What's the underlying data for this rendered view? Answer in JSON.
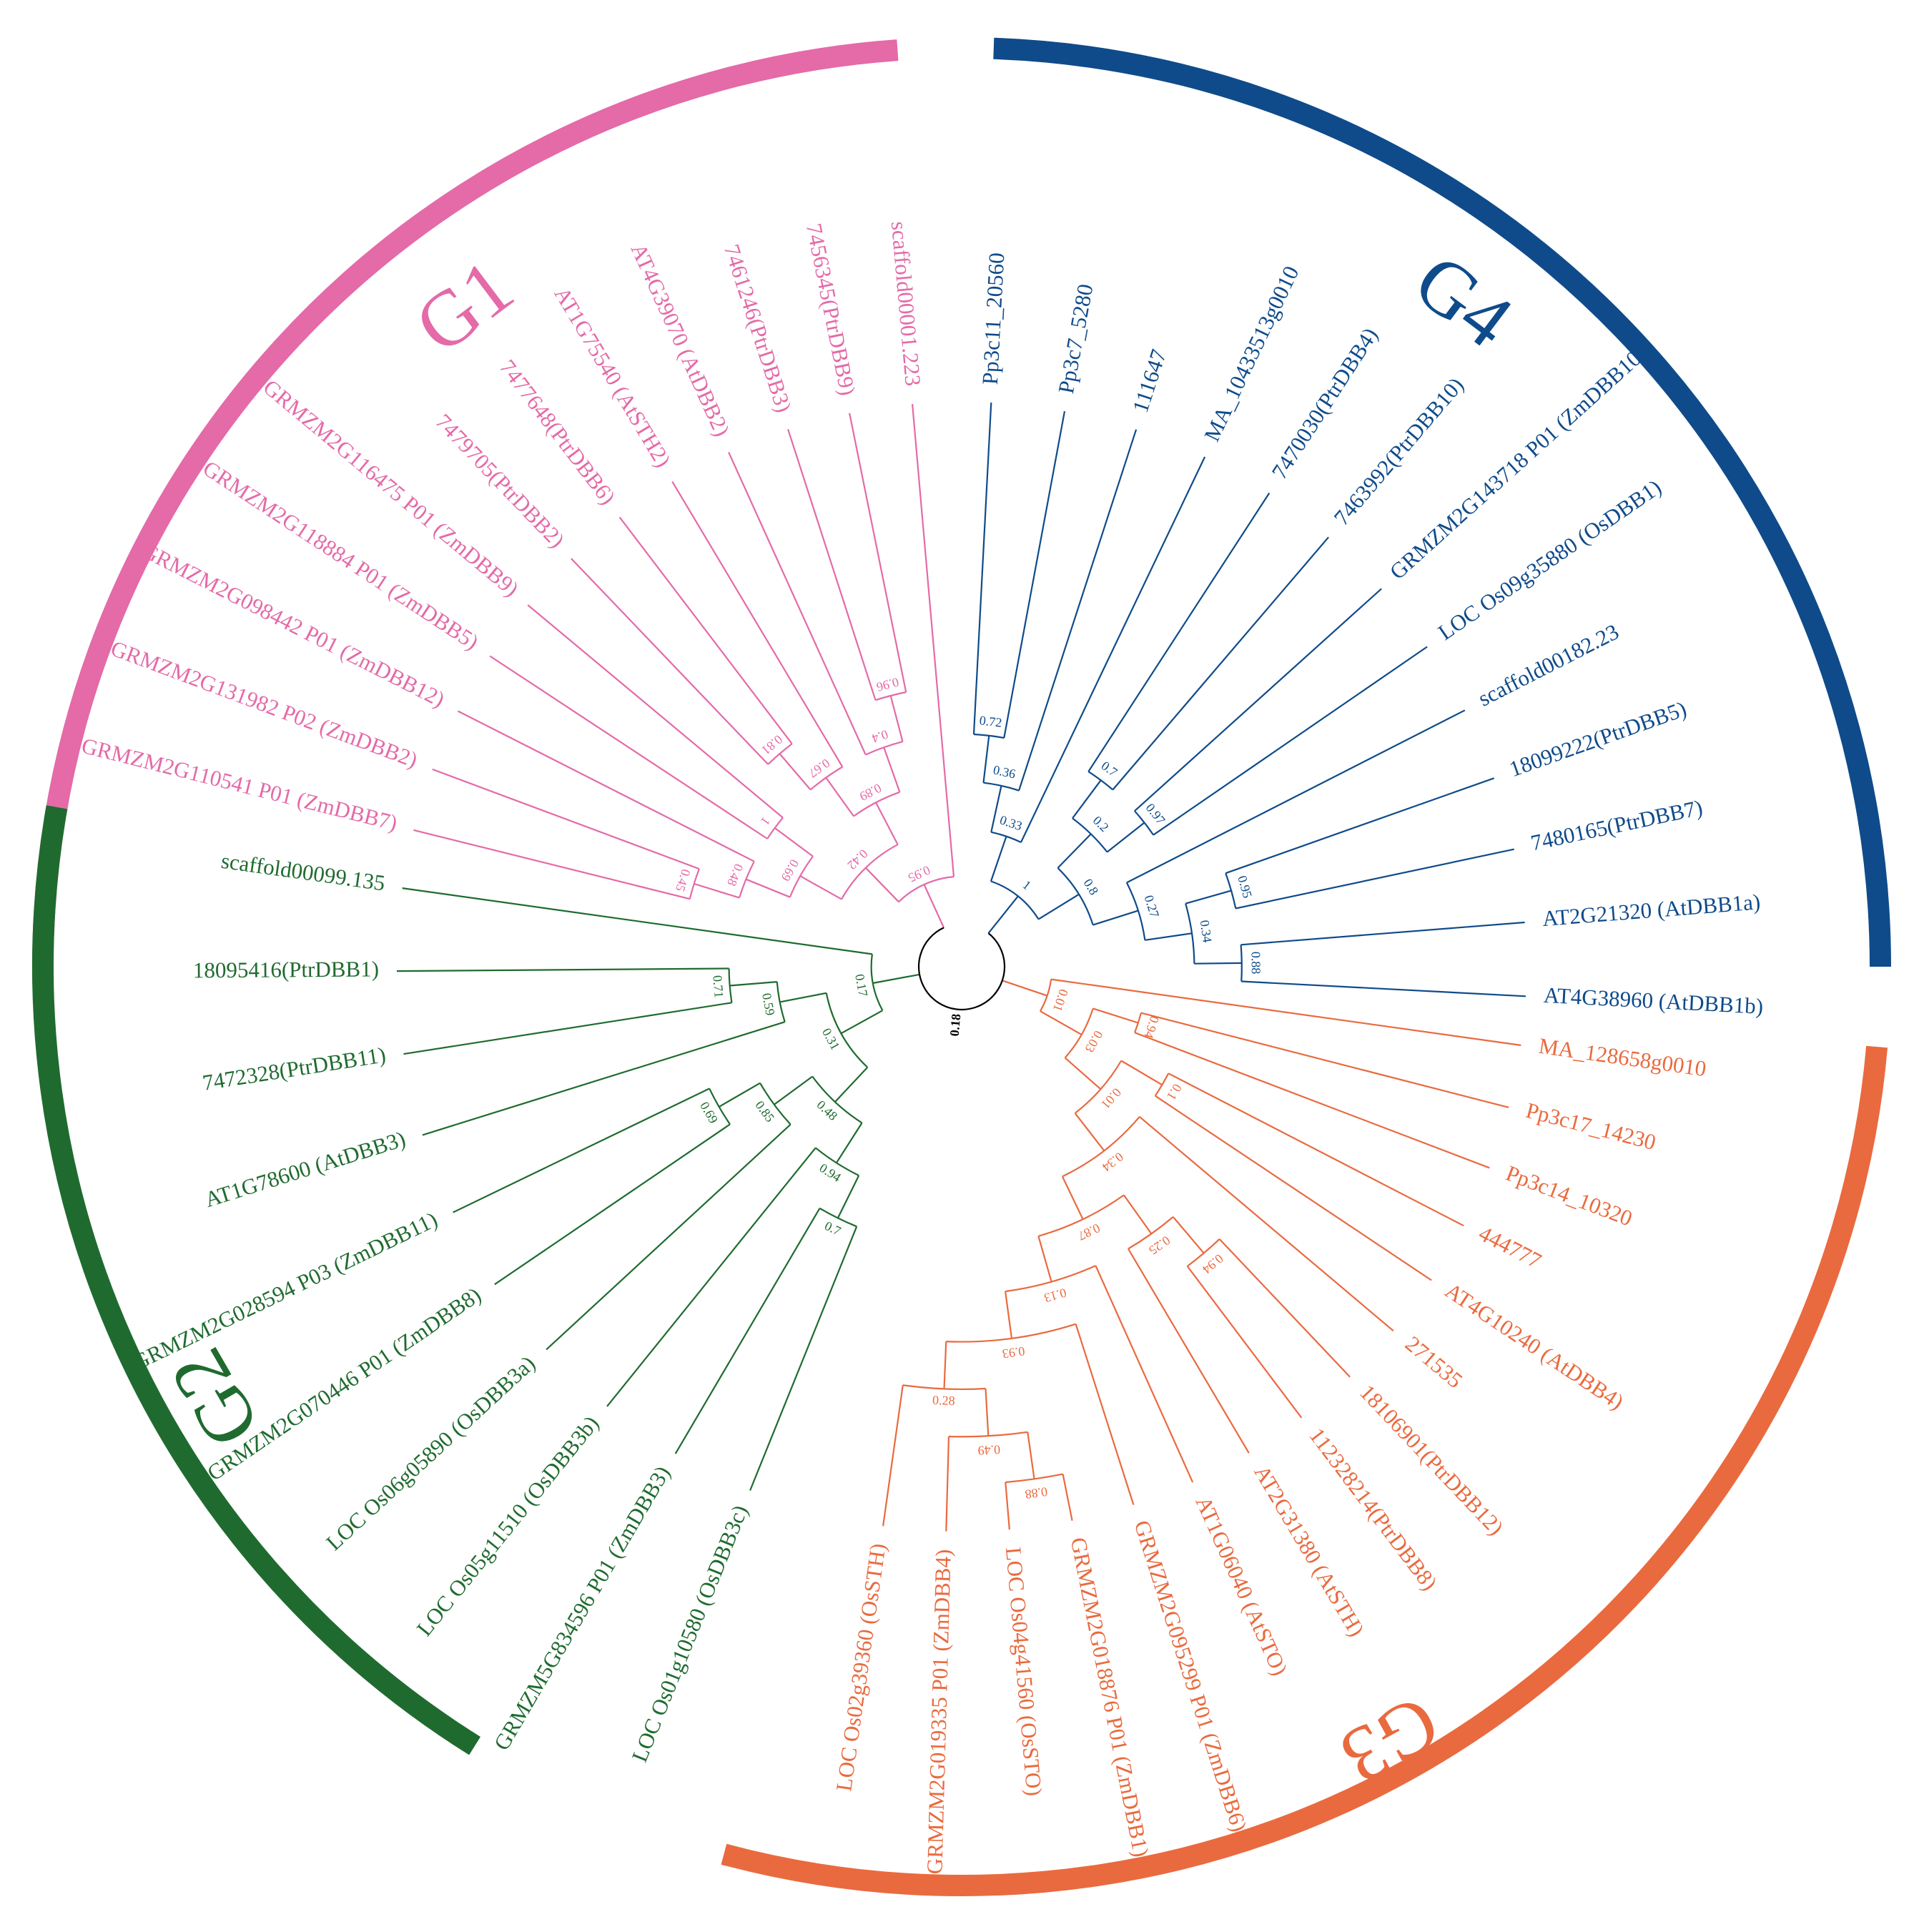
{
  "colors": {
    "G1": "#e46aa8",
    "G2": "#1f6b2f",
    "G3": "#e96a3f",
    "G4": "#0f4b8a",
    "root": "#000000"
  },
  "groups": [
    {
      "id": "G1",
      "label": "G1"
    },
    {
      "id": "G2",
      "label": "G2"
    },
    {
      "id": "G3",
      "label": "G3"
    },
    {
      "id": "G4",
      "label": "G4"
    }
  ],
  "tree": {
    "root_support": "0.18",
    "clades": [
      {
        "group": "G4",
        "root_support": "1",
        "subclades": [
          {
            "support": "0.33",
            "children": [
              {
                "support": "0.36",
                "children": [
                  {
                    "support": "0.72",
                    "children": [
                      "Pp3c11_20560",
                      "Pp3c7_5280"
                    ]
                  },
                  "111647"
                ]
              },
              "MA_10433513g0010"
            ]
          },
          {
            "support": "0.8",
            "children": [
              {
                "support": "0.2",
                "children": [
                  {
                    "support": "0.7",
                    "children": [
                      "7470030(PtrDBB4)",
                      "7463992(PtrDBB10)"
                    ]
                  },
                  {
                    "support": "0.97",
                    "children": [
                      "GRMZM2G143718 P01 (ZmDBB10)",
                      "LOC Os09g35880 (OsDBB1)"
                    ]
                  }
                ]
              },
              {
                "support": "0.27",
                "children": [
                  "scaffold00182.23",
                  {
                    "support": "0.34",
                    "children": [
                      {
                        "support": "0.95",
                        "children": [
                          "18099222(PtrDBB5)",
                          "7480165(PtrDBB7)"
                        ]
                      },
                      {
                        "support": "0.88",
                        "children": [
                          "AT2G21320 (AtDBB1a)",
                          "AT4G38960 (AtDBB1b)"
                        ]
                      }
                    ]
                  }
                ]
              }
            ]
          }
        ]
      },
      {
        "group": "G1",
        "root_support": "0.95",
        "subclades": [
          {
            "support": "0.42",
            "children": [
              {
                "support": "0.69",
                "children": [
                  {
                    "support": "0.48",
                    "children": [
                      {
                        "support": "0.45",
                        "children": [
                          "GRMZM2G110541 P01 (ZmDBB7)",
                          "GRMZM2G131982 P02 (ZmDBB2)"
                        ]
                      },
                      "GRMZM2G098442 P01 (ZmDBB12)"
                    ]
                  },
                  {
                    "support": "1",
                    "children": [
                      "GRMZM2G118884 P01 (ZmDBB5)",
                      "GRMZM2G116475 P01 (ZmDBB9)"
                    ]
                  }
                ]
              },
              {
                "support": "0.89",
                "children": [
                  {
                    "support": "0.67",
                    "children": [
                      {
                        "support": "0.81",
                        "children": [
                          "7479705(PtrDBB2)",
                          "7477648(PtrDBB6)"
                        ]
                      },
                      "AT1G75540 (AtSTH2)"
                    ]
                  },
                  {
                    "support": "0.4",
                    "children": [
                      "AT4G39070 (AtDBB2)",
                      {
                        "support": "0.96",
                        "children": [
                          "7461246(PtrDBB3)",
                          "7456345(PtrDBB9)"
                        ]
                      }
                    ]
                  }
                ]
              }
            ]
          },
          "scaffold00001.223"
        ]
      },
      {
        "group": "G2",
        "root_support": "0.17",
        "subclades": [
          {
            "support": "0.31",
            "children": [
              {
                "support": "0.48",
                "children": [
                  {
                    "support": "0.94",
                    "children": [
                      {
                        "support": "0.7",
                        "children": [
                          "LOC Os01g10580 (OsDBB3c)",
                          "GRMZM5G834596 P01 (ZmDBB3)"
                        ]
                      },
                      "LOC Os05g11510 (OsDBB3b)"
                    ]
                  },
                  {
                    "support": "0.85",
                    "children": [
                      "LOC Os06g05890 (OsDBB3a)",
                      {
                        "support": "0.69",
                        "children": [
                          "GRMZM2G070446 P01 (ZmDBB8)",
                          "GRMZM2G028594 P03 (ZmDBB11)"
                        ]
                      }
                    ]
                  }
                ]
              },
              {
                "support": "0.59",
                "children": [
                  "AT1G78600 (AtDBB3)",
                  {
                    "support": "0.71",
                    "children": [
                      "7472328(PtrDBB11)",
                      "18095416(PtrDBB1)"
                    ]
                  }
                ]
              }
            ]
          },
          "scaffold00099.135"
        ]
      },
      {
        "group": "G3",
        "root_support": "0.01",
        "subclades": [
          "MA_128658g0010",
          {
            "support": "0.03",
            "children": [
              {
                "support": "0.94",
                "children": [
                  "Pp3c17_14230",
                  "Pp3c14_10320"
                ]
              },
              {
                "support": "0.01",
                "children": [
                  {
                    "support": "0.1",
                    "children": [
                      "444777",
                      "AT4G10240 (AtDBB4)"
                    ]
                  },
                  {
                    "support": "0.34",
                    "children": [
                      "271535",
                      {
                        "support": "0.87",
                        "children": [
                          {
                            "support": "0.25",
                            "children": [
                              {
                                "support": "0.94",
                                "children": [
                                  "18106901(PtrDBB12)",
                                  "112328214(PtrDBB8)"
                                ]
                              },
                              "AT2G31380 (AtSTH)"
                            ]
                          },
                          {
                            "support": "0.13",
                            "children": [
                              "AT1G06040 (AtSTO)",
                              {
                                "support": "0.93",
                                "children": [
                                  "GRMZM2G095299 P01 (ZmDBB6)",
                                  {
                                    "support": "0.28",
                                    "children": [
                                      {
                                        "support": "0.49",
                                        "children": [
                                          {
                                            "support": "0.88",
                                            "children": [
                                              "GRMZM2G018876 P01 (ZmDBB1)",
                                              "LOC Os04g41560 (OsSTO)"
                                            ]
                                          },
                                          "GRMZM2G019335 P01 (ZmDBB4)"
                                        ]
                                      },
                                      "LOC Os02g39360 (OsSTH)"
                                    ]
                                  }
                                ]
                              }
                            ]
                          }
                        ]
                      }
                    ]
                  }
                ]
              }
            ]
          }
        ]
      }
    ]
  }
}
